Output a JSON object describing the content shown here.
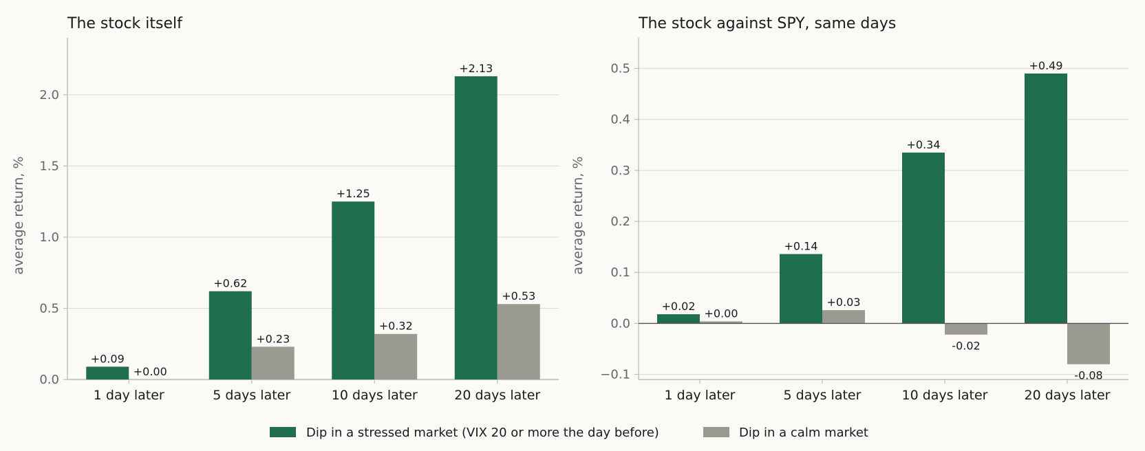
{
  "colors": {
    "stressed": "#1f6f4e",
    "calm": "#9b9a91",
    "grid": "#dcdcd6",
    "axis": "#bdbdb6",
    "zero": "#555555"
  },
  "legend": {
    "stressed": "Dip in a stressed market (VIX 20 or more the day before)",
    "calm": "Dip in a calm market"
  },
  "chart_data": [
    {
      "type": "bar",
      "title": "The stock itself",
      "ylabel": "average return, %",
      "xlabel": "",
      "categories": [
        "1 day later",
        "5 days later",
        "10 days later",
        "20 days later"
      ],
      "ylim": [
        0,
        2.4
      ],
      "yticks": [
        0.0,
        0.5,
        1.0,
        1.5,
        2.0
      ],
      "ytick_labels": [
        "0.0",
        "0.5",
        "1.0",
        "1.5",
        "2.0"
      ],
      "grid": true,
      "legend_position": "bottom-center",
      "series": [
        {
          "name": "Dip in a stressed market (VIX 20 or more the day before)",
          "values": [
            0.09,
            0.62,
            1.25,
            2.13
          ],
          "labels": [
            "+0.09",
            "+0.62",
            "+1.25",
            "+2.13"
          ]
        },
        {
          "name": "Dip in a calm market",
          "values": [
            0.0,
            0.23,
            0.32,
            0.53
          ],
          "labels": [
            "+0.00",
            "+0.23",
            "+0.32",
            "+0.53"
          ]
        }
      ]
    },
    {
      "type": "bar",
      "title": "The stock against SPY, same days",
      "ylabel": "average return, %",
      "xlabel": "",
      "categories": [
        "1 day later",
        "5 days later",
        "10 days later",
        "20 days later"
      ],
      "ylim": [
        -0.11,
        0.56
      ],
      "yticks": [
        -0.1,
        0.0,
        0.1,
        0.2,
        0.3,
        0.4,
        0.5
      ],
      "ytick_labels": [
        "−0.1",
        "0.0",
        "0.1",
        "0.2",
        "0.3",
        "0.4",
        "0.5"
      ],
      "grid": true,
      "legend_position": "bottom-center",
      "series": [
        {
          "name": "Dip in a stressed market (VIX 20 or more the day before)",
          "values": [
            0.018,
            0.136,
            0.335,
            0.49
          ],
          "labels": [
            "+0.02",
            "+0.14",
            "+0.34",
            "+0.49"
          ]
        },
        {
          "name": "Dip in a calm market",
          "values": [
            0.004,
            0.026,
            -0.022,
            -0.08
          ],
          "labels": [
            "+0.00",
            "+0.03",
            "-0.02",
            "-0.08"
          ]
        }
      ]
    }
  ]
}
